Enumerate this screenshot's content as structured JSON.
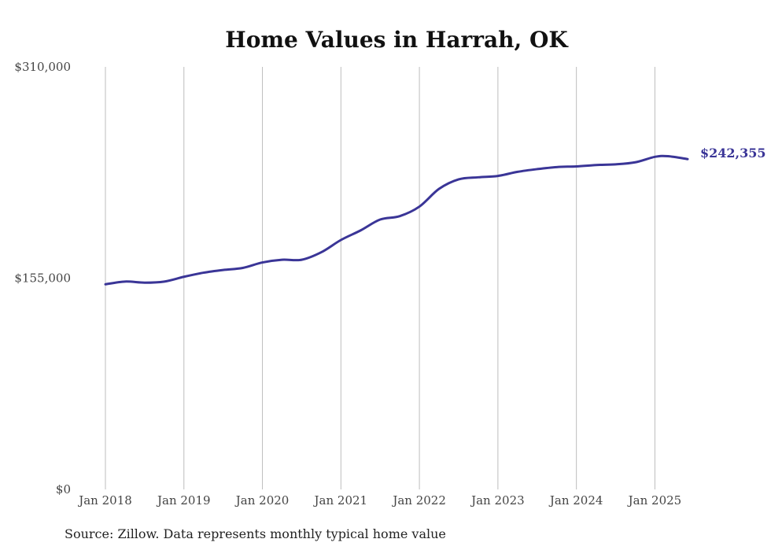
{
  "chart_data": {
    "type": "line",
    "title": "Home Values in Harrah, OK",
    "source_note": "Source: Zillow. Data represents monthly typical home value",
    "y_axis": {
      "min": 0,
      "max": 310000,
      "ticks": [
        {
          "value": 0,
          "label": "$0"
        },
        {
          "value": 155000,
          "label": "$155,000"
        },
        {
          "value": 310000,
          "label": "$310,000"
        }
      ]
    },
    "x_axis": {
      "min": "2018-01",
      "max": "2025-06",
      "ticks": [
        {
          "value": "2018-01",
          "label": "Jan 2018"
        },
        {
          "value": "2019-01",
          "label": "Jan 2019"
        },
        {
          "value": "2020-01",
          "label": "Jan 2020"
        },
        {
          "value": "2021-01",
          "label": "Jan 2021"
        },
        {
          "value": "2022-01",
          "label": "Jan 2022"
        },
        {
          "value": "2023-01",
          "label": "Jan 2023"
        },
        {
          "value": "2024-01",
          "label": "Jan 2024"
        },
        {
          "value": "2025-01",
          "label": "Jan 2025"
        }
      ]
    },
    "grid": {
      "vertical": true,
      "horizontal": false
    },
    "series": [
      {
        "color": "#3a3597",
        "end_label": "$242,355",
        "points": [
          {
            "x": "2018-01",
            "y": 150500
          },
          {
            "x": "2018-04",
            "y": 152500
          },
          {
            "x": "2018-07",
            "y": 151700
          },
          {
            "x": "2018-10",
            "y": 152500
          },
          {
            "x": "2019-01",
            "y": 156000
          },
          {
            "x": "2019-04",
            "y": 159000
          },
          {
            "x": "2019-07",
            "y": 161000
          },
          {
            "x": "2019-10",
            "y": 162500
          },
          {
            "x": "2020-01",
            "y": 166500
          },
          {
            "x": "2020-04",
            "y": 168500
          },
          {
            "x": "2020-07",
            "y": 168500
          },
          {
            "x": "2020-10",
            "y": 174000
          },
          {
            "x": "2021-01",
            "y": 183000
          },
          {
            "x": "2021-04",
            "y": 190000
          },
          {
            "x": "2021-07",
            "y": 198000
          },
          {
            "x": "2021-10",
            "y": 200500
          },
          {
            "x": "2022-01",
            "y": 207500
          },
          {
            "x": "2022-04",
            "y": 220500
          },
          {
            "x": "2022-07",
            "y": 227500
          },
          {
            "x": "2022-10",
            "y": 229000
          },
          {
            "x": "2023-01",
            "y": 230000
          },
          {
            "x": "2023-04",
            "y": 233000
          },
          {
            "x": "2023-07",
            "y": 235000
          },
          {
            "x": "2023-10",
            "y": 236500
          },
          {
            "x": "2024-01",
            "y": 237000
          },
          {
            "x": "2024-04",
            "y": 238000
          },
          {
            "x": "2024-07",
            "y": 238500
          },
          {
            "x": "2024-10",
            "y": 240000
          },
          {
            "x": "2025-01",
            "y": 244000
          },
          {
            "x": "2025-03",
            "y": 244500
          },
          {
            "x": "2025-06",
            "y": 242355
          }
        ]
      }
    ]
  }
}
